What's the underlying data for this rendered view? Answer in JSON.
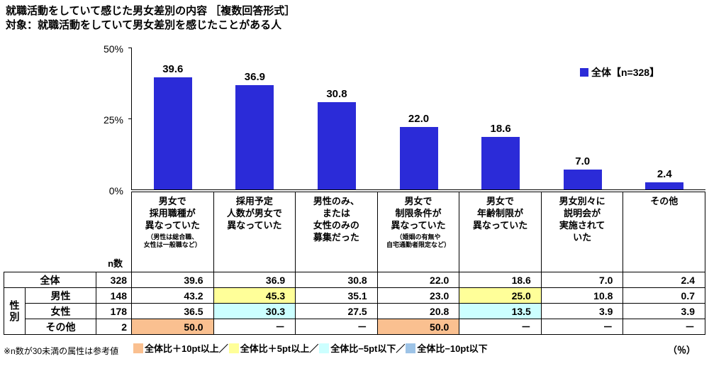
{
  "header": {
    "title": "就職活動をしていて感じた男女差別の内容 ［複数回答形式］",
    "subtitle": "対象：就職活動をしていて男女差別を感じたことがある人"
  },
  "chart_data": {
    "type": "bar",
    "legend": "全体【n=328】",
    "bar_color": "#2b2bd8",
    "ylim": [
      0,
      50
    ],
    "yticks": [
      {
        "label": "50%",
        "value": 50
      },
      {
        "label": "25%",
        "value": 25
      },
      {
        "label": "0%",
        "value": 0
      }
    ],
    "categories": [
      "男女で採用職種が異なっていた（男性は総合職、女性は一般職など）",
      "採用予定人数が男女で異なっていた",
      "男性のみ、または女性のみの募集だった",
      "男女で制限条件が異なっていた（婚姻の有無や自宅通勤者限定など）",
      "男女で年齢制限が異なっていた",
      "男女別々に説明会が実施されていた",
      "その他"
    ],
    "values": [
      39.6,
      36.9,
      30.8,
      22.0,
      18.6,
      7.0,
      2.4
    ]
  },
  "table": {
    "n_label": "n数",
    "row_group_label": "性別",
    "highlight_colors": {
      "orange": "#FAC090",
      "yellow": "#FFFF99",
      "cyan": "#CCFFFF",
      "blue": "#9DC3E6"
    },
    "headers": [
      {
        "lines": [
          "男女で",
          "採用職種が",
          "異なっていた"
        ],
        "note": [
          "（男性は総合職、",
          "女性は一般職など）"
        ]
      },
      {
        "lines": [
          "採用予定",
          "人数が男女で",
          "異なっていた"
        ]
      },
      {
        "lines": [
          "男性のみ、",
          "または",
          "女性のみの",
          "募集だった"
        ]
      },
      {
        "lines": [
          "男女で",
          "制限条件が",
          "異なっていた"
        ],
        "note": [
          "（婚姻の有無や",
          "自宅通勤者限定など）"
        ]
      },
      {
        "lines": [
          "男女で",
          "年齢制限が",
          "異なっていた"
        ]
      },
      {
        "lines": [
          "男女別々に",
          "説明会が",
          "実施されて",
          "いた"
        ]
      },
      {
        "lines": [
          "その他"
        ]
      }
    ],
    "rows": [
      {
        "label": "全体",
        "n": "328",
        "cells": [
          {
            "v": "39.6"
          },
          {
            "v": "36.9"
          },
          {
            "v": "30.8"
          },
          {
            "v": "22.0"
          },
          {
            "v": "18.6"
          },
          {
            "v": "7.0"
          },
          {
            "v": "2.4"
          }
        ]
      },
      {
        "label": "男性",
        "n": "148",
        "cells": [
          {
            "v": "43.2"
          },
          {
            "v": "45.3",
            "hl": "yellow"
          },
          {
            "v": "35.1"
          },
          {
            "v": "23.0"
          },
          {
            "v": "25.0",
            "hl": "yellow"
          },
          {
            "v": "10.8"
          },
          {
            "v": "0.7"
          }
        ]
      },
      {
        "label": "女性",
        "n": "178",
        "cells": [
          {
            "v": "36.5"
          },
          {
            "v": "30.3",
            "hl": "cyan"
          },
          {
            "v": "27.5"
          },
          {
            "v": "20.8"
          },
          {
            "v": "13.5",
            "hl": "cyan"
          },
          {
            "v": "3.9"
          },
          {
            "v": "3.9"
          }
        ]
      },
      {
        "label": "その他",
        "n": "2",
        "cells": [
          {
            "v": "50.0",
            "hl": "orange"
          },
          {
            "v": "－"
          },
          {
            "v": "－"
          },
          {
            "v": "50.0",
            "hl": "orange"
          },
          {
            "v": "－"
          },
          {
            "v": "－"
          },
          {
            "v": "－"
          }
        ]
      }
    ]
  },
  "footer": {
    "note": "※n数が30未満の属性は参考値",
    "legend": [
      {
        "color": "#FAC090",
        "label": "全体比＋10pt以上／"
      },
      {
        "color": "#FFFF99",
        "label": "全体比＋5pt以上／"
      },
      {
        "color": "#CCFFFF",
        "label": "全体比−5pt以下／"
      },
      {
        "color": "#9DC3E6",
        "label": "全体比−10pt以下"
      }
    ],
    "percent_label": "（％）"
  }
}
